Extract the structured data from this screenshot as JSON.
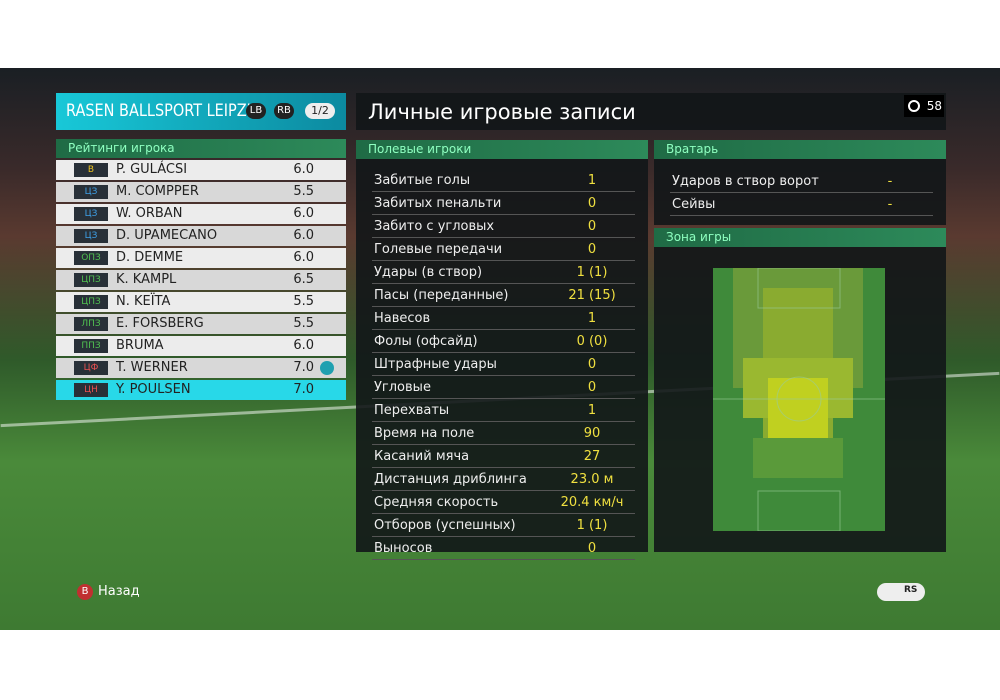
{
  "header": {
    "team": "RASEN BALLSPORT LEIPZIG",
    "buttons": [
      "LB",
      "RB"
    ],
    "page": "1/2",
    "title": "Личные игровые записи",
    "clock": "58"
  },
  "players": {
    "title": "Рейтинги игрока",
    "rows": [
      {
        "position": "В",
        "color": "#e8c020",
        "name": "P. GULÁCSI",
        "rating": "6.0"
      },
      {
        "position": "ЦЗ",
        "color": "#3ea0e8",
        "name": "M. COMPPER",
        "rating": "5.5"
      },
      {
        "position": "ЦЗ",
        "color": "#3ea0e8",
        "name": "W. ORBAN",
        "rating": "6.0"
      },
      {
        "position": "ЦЗ",
        "color": "#3ea0e8",
        "name": "D. UPAMECANO",
        "rating": "6.0"
      },
      {
        "position": "ОПЗ",
        "color": "#50c050",
        "name": "D. DEMME",
        "rating": "6.0"
      },
      {
        "position": "ЦПЗ",
        "color": "#50c050",
        "name": "K. KAMPL",
        "rating": "6.5"
      },
      {
        "position": "ЦПЗ",
        "color": "#50c050",
        "name": "N. KEÏTA",
        "rating": "5.5"
      },
      {
        "position": "ЛПЗ",
        "color": "#50c050",
        "name": "E. FORSBERG",
        "rating": "5.5"
      },
      {
        "position": "ППЗ",
        "color": "#50c050",
        "name": "BRUMA",
        "rating": "6.0"
      },
      {
        "position": "ЦФ",
        "color": "#e85050",
        "name": "T. WERNER",
        "rating": "7.0",
        "star": true
      },
      {
        "position": "ЦН",
        "color": "#e85050",
        "name": "Y. POULSEN",
        "rating": "7.0",
        "selected": true
      }
    ]
  },
  "field_players": {
    "title": "Полевые игроки",
    "rows": [
      [
        "Забитые голы",
        "1"
      ],
      [
        "Забитых пенальти",
        "0"
      ],
      [
        "Забито с угловых",
        "0"
      ],
      [
        "Голевые передачи",
        "0"
      ],
      [
        "Удары (в створ)",
        "1 (1)"
      ],
      [
        "Пасы (переданные)",
        "21 (15)"
      ],
      [
        "Навесов",
        "1"
      ],
      [
        "Фолы (офсайд)",
        "0 (0)"
      ],
      [
        "Штрафные удары",
        "0"
      ],
      [
        "Угловые",
        "0"
      ],
      [
        "Перехваты",
        "1"
      ],
      [
        "Время на поле",
        "90"
      ],
      [
        "Касаний мяча",
        "27"
      ],
      [
        "Дистанция дриблинга",
        "23.0 м"
      ],
      [
        "Средняя скорость",
        "20.4 км/ч"
      ],
      [
        "Отборов (успешных)",
        "1 (1)"
      ],
      [
        "Выносов",
        "0"
      ]
    ]
  },
  "goalkeeper": {
    "title": "Вратарь",
    "rows": [
      [
        "Ударов в створ ворот",
        "-"
      ],
      [
        "Сейвы",
        "-"
      ]
    ]
  },
  "zone": {
    "title": "Зона игры"
  },
  "footer": {
    "button": "B",
    "back": "Назад",
    "icon": "RS"
  }
}
